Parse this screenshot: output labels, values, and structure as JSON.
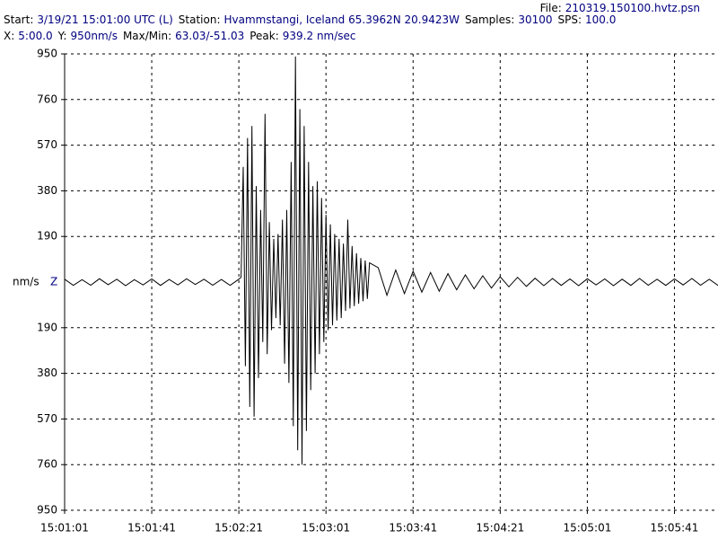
{
  "header": {
    "lines": [
      [
        {
          "label": "File:",
          "value": "210319.150100.hvtz.psn"
        }
      ],
      [
        {
          "label": "Start:",
          "value": "3/19/21 15:01:00 UTC (L)"
        },
        {
          "label": "Station:",
          "value": "Hvammstangi, Iceland 65.3962N 20.9423W"
        },
        {
          "label": "Samples:",
          "value": "30100"
        },
        {
          "label": "SPS:",
          "value": "100.0"
        }
      ],
      [
        {
          "label": "X:",
          "value": "5:00.0"
        },
        {
          "label": "Y:",
          "value": "950nm/s"
        },
        {
          "label": "Max/Min:",
          "value": "63.03/-51.03"
        },
        {
          "label": "Peak:",
          "value": "939.2 nm/sec"
        }
      ]
    ]
  },
  "chart_data": {
    "type": "line",
    "y_label": "nm/s",
    "channel": "Z",
    "xlim": [
      0,
      300
    ],
    "xticks": [
      {
        "value": 0,
        "label": "15:01:01"
      },
      {
        "value": 40,
        "label": "15:01:41"
      },
      {
        "value": 80,
        "label": "15:02:21"
      },
      {
        "value": 120,
        "label": "15:03:01"
      },
      {
        "value": 160,
        "label": "15:03:41"
      },
      {
        "value": 200,
        "label": "15:04:21"
      },
      {
        "value": 240,
        "label": "15:05:01"
      },
      {
        "value": 280,
        "label": "15:05:41"
      }
    ],
    "ylim": [
      -950,
      950
    ],
    "yticks": [
      950,
      760,
      570,
      380,
      190,
      {
        "value": -190,
        "label": "190"
      },
      {
        "value": -380,
        "label": "380"
      },
      {
        "value": -570,
        "label": "570"
      },
      {
        "value": -760,
        "label": "760"
      },
      {
        "value": -950,
        "label": "950"
      }
    ],
    "grid": true,
    "series": [
      {
        "color": "#000000",
        "x": [
          0,
          4,
          8,
          12,
          16,
          20,
          24,
          28,
          32,
          36,
          40,
          44,
          48,
          52,
          56,
          60,
          64,
          68,
          72,
          76,
          80,
          81,
          82,
          83,
          84,
          85,
          86,
          87,
          88,
          89,
          90,
          91,
          92,
          93,
          94,
          95,
          96,
          97,
          98,
          99,
          100,
          101,
          102,
          103,
          104,
          105,
          106,
          107,
          108,
          109,
          110,
          111,
          112,
          113,
          114,
          115,
          116,
          117,
          118,
          119,
          120,
          121,
          122,
          123,
          124,
          125,
          126,
          127,
          128,
          129,
          130,
          131,
          132,
          133,
          134,
          135,
          136,
          137,
          138,
          139,
          140,
          144,
          148,
          152,
          156,
          160,
          164,
          168,
          172,
          176,
          180,
          184,
          188,
          192,
          196,
          200,
          204,
          208,
          212,
          216,
          220,
          224,
          228,
          232,
          236,
          240,
          244,
          248,
          252,
          256,
          260,
          264,
          268,
          272,
          276,
          280,
          284,
          288,
          292,
          296,
          300
        ],
        "values": [
          12,
          -14,
          10,
          -13,
          14,
          -11,
          12,
          -15,
          10,
          -12,
          13,
          -14,
          11,
          -12,
          14,
          -10,
          12,
          -13,
          11,
          -14,
          12,
          20,
          480,
          -350,
          600,
          -520,
          650,
          -560,
          400,
          -400,
          300,
          -250,
          700,
          -300,
          250,
          -200,
          180,
          -150,
          200,
          -180,
          260,
          -340,
          300,
          -420,
          500,
          -600,
          939,
          -700,
          720,
          -760,
          650,
          -620,
          500,
          -450,
          400,
          -380,
          420,
          -300,
          350,
          -250,
          280,
          -200,
          240,
          -180,
          200,
          -160,
          180,
          -150,
          160,
          -120,
          260,
          -110,
          150,
          -100,
          120,
          -90,
          100,
          -80,
          90,
          -70,
          80,
          60,
          -55,
          50,
          -48,
          45,
          -42,
          40,
          -38,
          35,
          -32,
          30,
          -28,
          26,
          -25,
          22,
          -20,
          20,
          -18,
          16,
          -15,
          15,
          -14,
          13,
          -15,
          14,
          -12,
          13,
          -15,
          12,
          -14,
          15,
          -13,
          12,
          -14,
          13,
          -12,
          15,
          -13,
          12,
          -14
        ]
      }
    ]
  }
}
